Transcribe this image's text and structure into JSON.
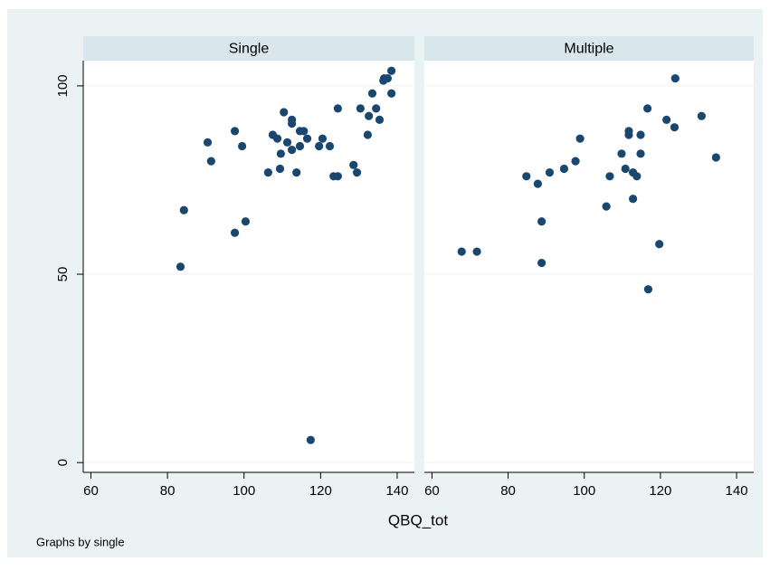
{
  "chart_data": {
    "type": "scatter",
    "xlabel": "QBQ_tot",
    "note": "Graphs by single",
    "color": "#1a476f",
    "grid": true,
    "xlim": [
      58,
      144.5
    ],
    "ylim": [
      -2.6,
      106.7
    ],
    "xticks": [
      60,
      80,
      100,
      120,
      140
    ],
    "yticks": [
      0,
      50,
      100
    ],
    "panels": [
      {
        "title": "Single",
        "x": [
          83.4,
          84.3,
          90.5,
          91.4,
          97.6,
          97.6,
          99.5,
          100.4,
          106.3,
          107.5,
          108.7,
          109.4,
          109.6,
          110.4,
          111.3,
          112.5,
          112.5,
          112.5,
          113.7,
          114.6,
          114.6,
          115.6,
          116.5,
          117.4,
          119.6,
          120.5,
          122.4,
          123.4,
          124.5,
          124.5,
          128.6,
          129.5,
          130.4,
          132.3,
          132.6,
          133.5,
          134.5,
          135.4,
          136.4,
          136.6,
          137.5,
          138.5,
          138.5
        ],
        "values": [
          52,
          67,
          85,
          80,
          88,
          61,
          84,
          64,
          77,
          87,
          86,
          78,
          82,
          93,
          85,
          91,
          90,
          83,
          77,
          88,
          84,
          88,
          86,
          6,
          84,
          86,
          84,
          76,
          76,
          94,
          79,
          77,
          94,
          87,
          92,
          98,
          94,
          91,
          101.4,
          102,
          102,
          98,
          104
        ]
      },
      {
        "title": "Multiple",
        "x": [
          67.8,
          71.8,
          84.8,
          87.8,
          88.8,
          88.8,
          90.9,
          94.7,
          97.7,
          98.9,
          105.8,
          106.7,
          109.8,
          110.8,
          111.7,
          111.7,
          112.8,
          112.8,
          113.8,
          114.8,
          114.8,
          116.6,
          116.8,
          119.7,
          121.6,
          123.7,
          123.9,
          130.8,
          134.6
        ],
        "values": [
          56,
          56,
          76,
          74,
          64,
          53,
          77,
          78,
          80,
          86,
          68,
          76,
          82,
          78,
          88,
          87,
          70,
          77,
          76,
          87,
          82,
          94,
          46,
          58,
          91,
          89,
          102,
          92,
          81
        ]
      }
    ]
  }
}
